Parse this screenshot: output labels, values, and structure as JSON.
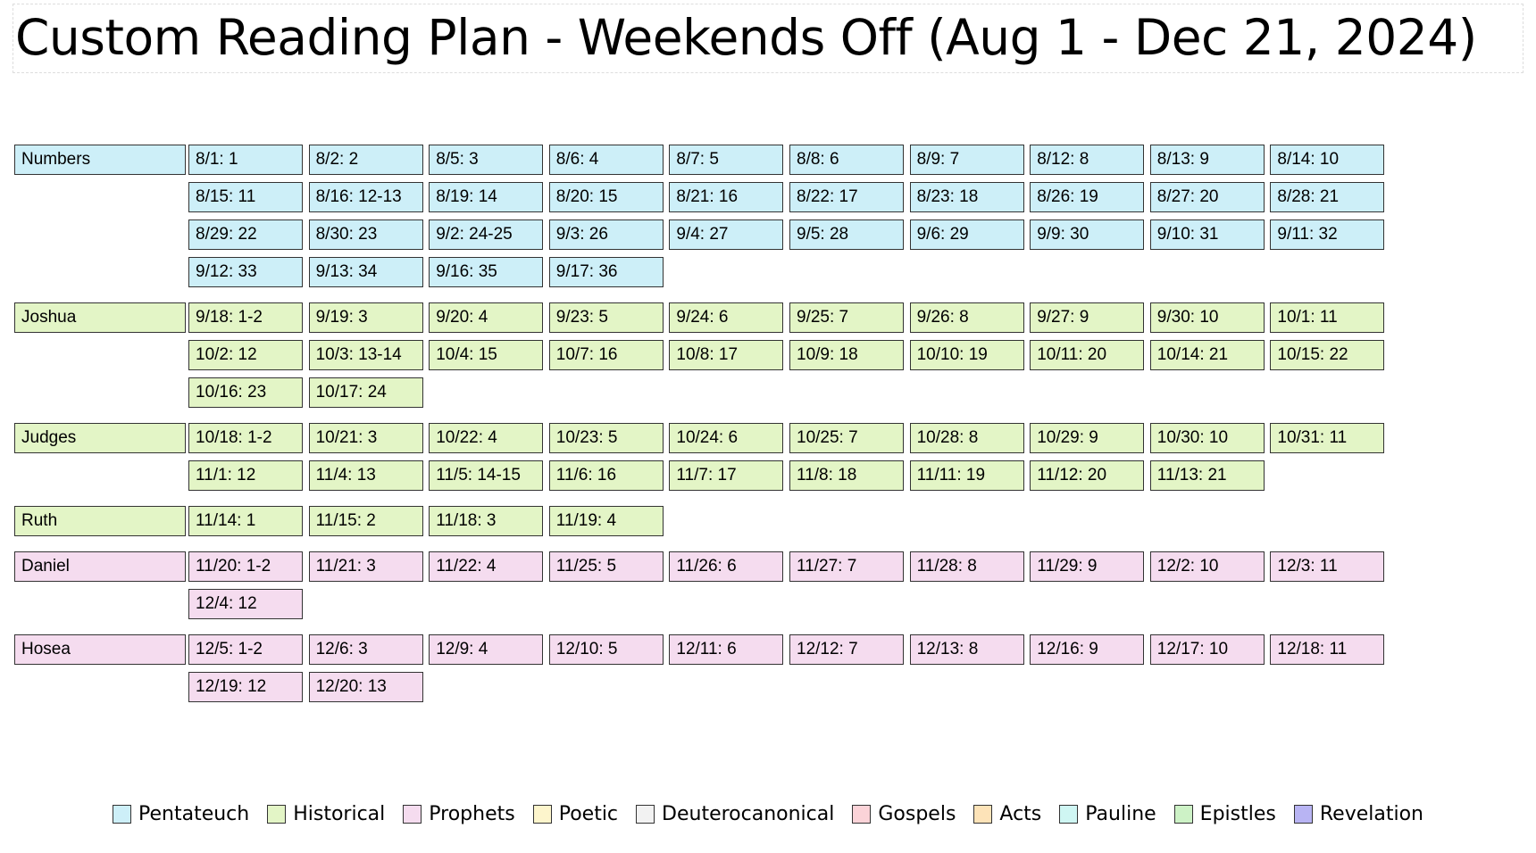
{
  "title": "Custom Reading Plan - Weekends Off (Aug 1 - Dec 21, 2024)",
  "category_colors": {
    "Pentateuch": "#cdeff8",
    "Historical": "#e3f5c6",
    "Prophets": "#f5dcef",
    "Poetic": "#fdf5cc",
    "Deuterocanonical": "#f2f2f2",
    "Gospels": "#fbd3d8",
    "Acts": "#fde3b8",
    "Pauline": "#cff6f3",
    "Epistles": "#cdf2c6",
    "Revelation": "#b8b4f3"
  },
  "books": [
    {
      "name": "Numbers",
      "category": "Pentateuch",
      "readings": [
        "8/1: 1",
        "8/2: 2",
        "8/5: 3",
        "8/6: 4",
        "8/7: 5",
        "8/8: 6",
        "8/9: 7",
        "8/12: 8",
        "8/13: 9",
        "8/14: 10",
        "8/15: 11",
        "8/16: 12-13",
        "8/19: 14",
        "8/20: 15",
        "8/21: 16",
        "8/22: 17",
        "8/23: 18",
        "8/26: 19",
        "8/27: 20",
        "8/28: 21",
        "8/29: 22",
        "8/30: 23",
        "9/2: 24-25",
        "9/3: 26",
        "9/4: 27",
        "9/5: 28",
        "9/6: 29",
        "9/9: 30",
        "9/10: 31",
        "9/11: 32",
        "9/12: 33",
        "9/13: 34",
        "9/16: 35",
        "9/17: 36"
      ]
    },
    {
      "name": "Joshua",
      "category": "Historical",
      "readings": [
        "9/18: 1-2",
        "9/19: 3",
        "9/20: 4",
        "9/23: 5",
        "9/24: 6",
        "9/25: 7",
        "9/26: 8",
        "9/27: 9",
        "9/30: 10",
        "10/1: 11",
        "10/2: 12",
        "10/3: 13-14",
        "10/4: 15",
        "10/7: 16",
        "10/8: 17",
        "10/9: 18",
        "10/10: 19",
        "10/11: 20",
        "10/14: 21",
        "10/15: 22",
        "10/16: 23",
        "10/17: 24"
      ]
    },
    {
      "name": "Judges",
      "category": "Historical",
      "readings": [
        "10/18: 1-2",
        "10/21: 3",
        "10/22: 4",
        "10/23: 5",
        "10/24: 6",
        "10/25: 7",
        "10/28: 8",
        "10/29: 9",
        "10/30: 10",
        "10/31: 11",
        "11/1: 12",
        "11/4: 13",
        "11/5: 14-15",
        "11/6: 16",
        "11/7: 17",
        "11/8: 18",
        "11/11: 19",
        "11/12: 20",
        "11/13: 21"
      ]
    },
    {
      "name": "Ruth",
      "category": "Historical",
      "readings": [
        "11/14: 1",
        "11/15: 2",
        "11/18: 3",
        "11/19: 4"
      ]
    },
    {
      "name": "Daniel",
      "category": "Prophets",
      "readings": [
        "11/20: 1-2",
        "11/21: 3",
        "11/22: 4",
        "11/25: 5",
        "11/26: 6",
        "11/27: 7",
        "11/28: 8",
        "11/29: 9",
        "12/2: 10",
        "12/3: 11",
        "12/4: 12"
      ]
    },
    {
      "name": "Hosea",
      "category": "Prophets",
      "readings": [
        "12/5: 1-2",
        "12/6: 3",
        "12/9: 4",
        "12/10: 5",
        "12/11: 6",
        "12/12: 7",
        "12/13: 8",
        "12/16: 9",
        "12/17: 10",
        "12/18: 11",
        "12/19: 12",
        "12/20: 13"
      ]
    }
  ],
  "legend": [
    "Pentateuch",
    "Historical",
    "Prophets",
    "Poetic",
    "Deuterocanonical",
    "Gospels",
    "Acts",
    "Pauline",
    "Epistles",
    "Revelation"
  ]
}
